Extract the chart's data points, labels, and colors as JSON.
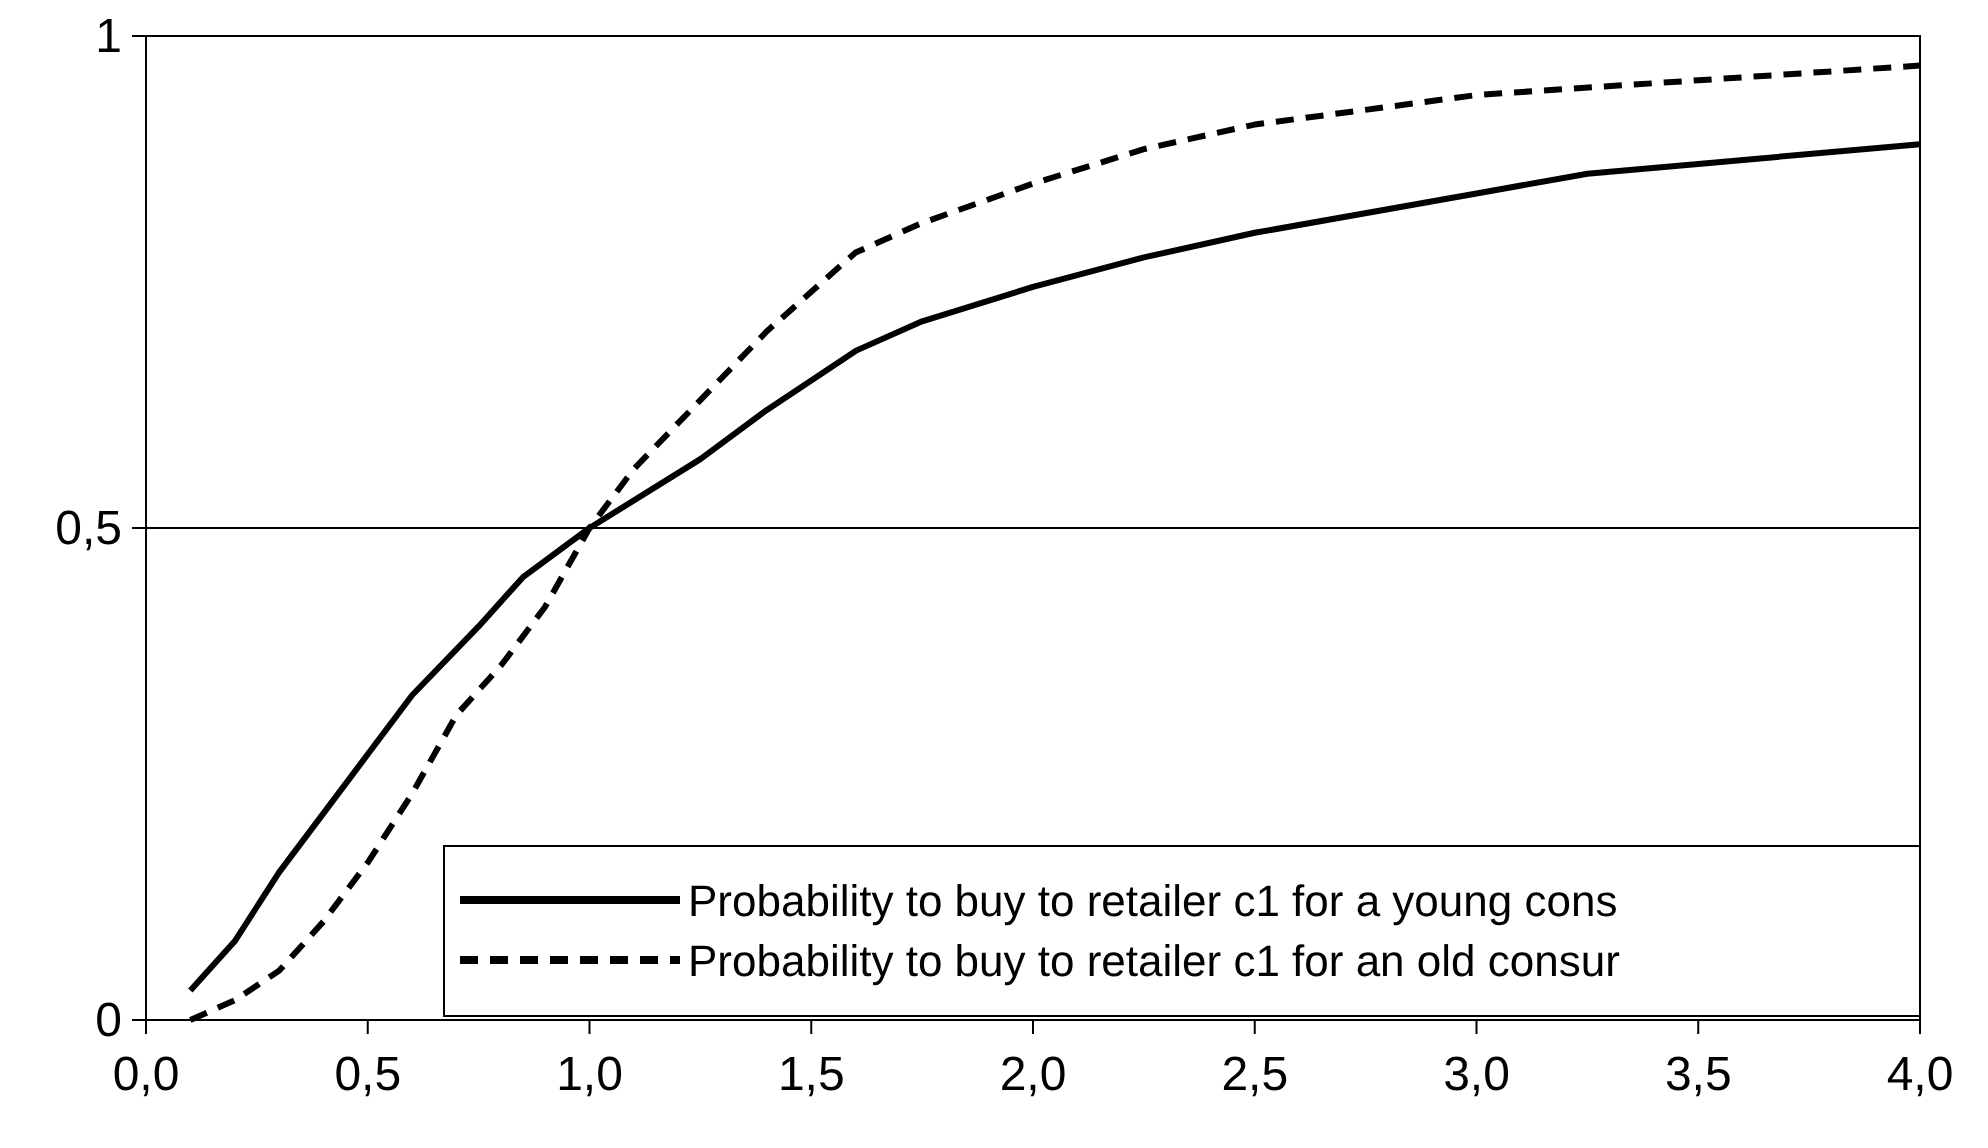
{
  "chart_data": {
    "type": "line",
    "xlim": [
      0,
      4
    ],
    "ylim": [
      0,
      1
    ],
    "xticks": [
      {
        "value": 0,
        "label": "0,0"
      },
      {
        "value": 0.5,
        "label": "0,5"
      },
      {
        "value": 1,
        "label": "1,0"
      },
      {
        "value": 1.5,
        "label": "1,5"
      },
      {
        "value": 2,
        "label": "2,0"
      },
      {
        "value": 2.5,
        "label": "2,5"
      },
      {
        "value": 3,
        "label": "3,0"
      },
      {
        "value": 3.5,
        "label": "3,5"
      },
      {
        "value": 4,
        "label": "4,0"
      }
    ],
    "yticks": [
      0,
      {
        "value": 0.5,
        "label": "0,5"
      },
      1
    ],
    "grid": "y",
    "legend": "bottom right",
    "marker": "none",
    "series": [
      {
        "name": "Probability to buy to retailer c1 for a young cons",
        "color": "#000000",
        "line_style": "solid",
        "x": [
          0.1,
          0.2,
          0.3,
          0.4,
          0.5,
          0.6,
          0.75,
          0.85,
          1.0,
          1.25,
          1.4,
          1.5,
          1.6,
          1.75,
          2.0,
          2.25,
          2.5,
          3.0,
          3.25,
          3.5,
          4.0
        ],
        "values": [
          0.03,
          0.08,
          0.15,
          0.21,
          0.27,
          0.33,
          0.4,
          0.45,
          0.5,
          0.57,
          0.62,
          0.65,
          0.68,
          0.71,
          0.745,
          0.775,
          0.8,
          0.84,
          0.86,
          0.87,
          0.89
        ]
      },
      {
        "name": "Probability to buy to retailer c1 for an old consur",
        "color": "#000000",
        "line_style": "dashed",
        "x": [
          0.1,
          0.2,
          0.3,
          0.4,
          0.5,
          0.6,
          0.7,
          0.8,
          0.9,
          1.0,
          1.1,
          1.25,
          1.4,
          1.5,
          1.6,
          1.75,
          2.0,
          2.25,
          2.5,
          3.0,
          3.5,
          4.0
        ],
        "values": [
          0.0,
          0.02,
          0.05,
          0.1,
          0.16,
          0.23,
          0.31,
          0.36,
          0.42,
          0.5,
          0.56,
          0.63,
          0.7,
          0.74,
          0.78,
          0.81,
          0.85,
          0.885,
          0.91,
          0.94,
          0.955,
          0.97
        ]
      }
    ]
  }
}
